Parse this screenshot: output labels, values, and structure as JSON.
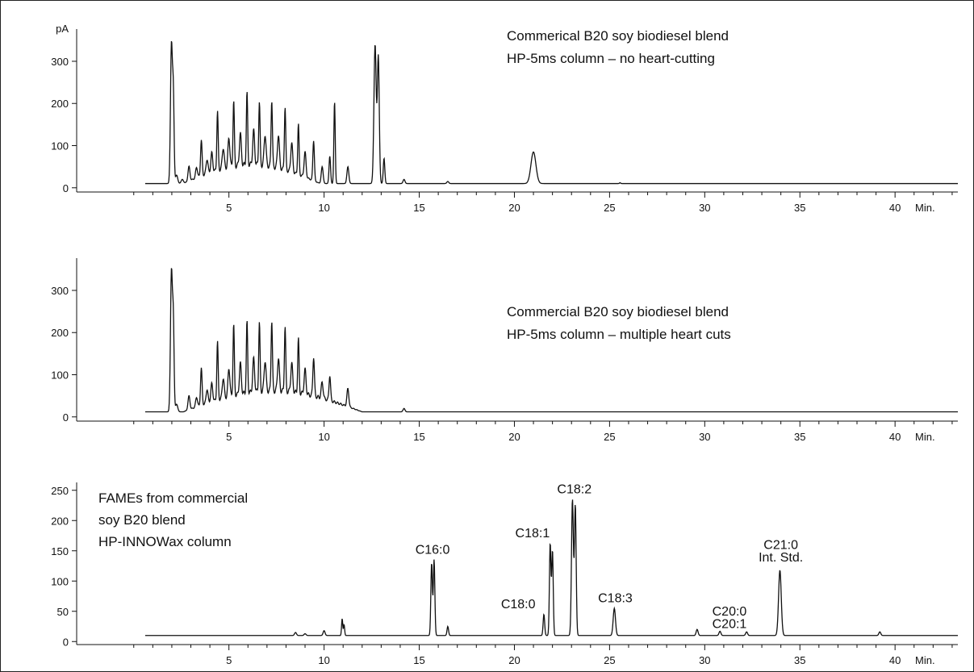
{
  "chart_data": [
    {
      "type": "line",
      "title": "",
      "xlabel": "",
      "ylabel": "",
      "y_unit_label": "pA",
      "x_unit_label": "Min.",
      "xlim": [
        -3.0,
        43.3
      ],
      "ylim": [
        -10,
        365
      ],
      "xticks": [
        5,
        10,
        15,
        20,
        25,
        30,
        35,
        40
      ],
      "yticks": [
        0,
        100,
        200,
        300
      ],
      "annotations": [
        "Commerical B20 soy biodiesel blend",
        "HP-5ms column – no heart-cutting"
      ],
      "baseline": 10,
      "peaks": [
        [
          1.98,
          340,
          0.05
        ],
        [
          2.08,
          210,
          0.04
        ],
        [
          2.25,
          30,
          0.06
        ],
        [
          2.55,
          20,
          0.06
        ],
        [
          2.9,
          45,
          0.05
        ],
        [
          3.3,
          35,
          0.05
        ],
        [
          3.55,
          95,
          0.04
        ],
        [
          3.85,
          45,
          0.05
        ],
        [
          4.1,
          55,
          0.05
        ],
        [
          4.4,
          150,
          0.035
        ],
        [
          4.7,
          60,
          0.05
        ],
        [
          5.0,
          80,
          0.05
        ],
        [
          5.25,
          165,
          0.035
        ],
        [
          5.6,
          85,
          0.05
        ],
        [
          5.95,
          180,
          0.035
        ],
        [
          6.3,
          90,
          0.05
        ],
        [
          6.6,
          160,
          0.035
        ],
        [
          6.9,
          85,
          0.05
        ],
        [
          7.25,
          170,
          0.035
        ],
        [
          7.6,
          90,
          0.05
        ],
        [
          7.95,
          160,
          0.035
        ],
        [
          8.3,
          80,
          0.05
        ],
        [
          8.65,
          130,
          0.035
        ],
        [
          9.0,
          70,
          0.05
        ],
        [
          9.45,
          105,
          0.04
        ],
        [
          9.9,
          50,
          0.05
        ],
        [
          10.3,
          75,
          0.04
        ],
        [
          10.55,
          205,
          0.035
        ],
        [
          11.25,
          50,
          0.05
        ],
        [
          12.68,
          340,
          0.06
        ],
        [
          12.85,
          310,
          0.05
        ],
        [
          13.15,
          70,
          0.04
        ],
        [
          14.2,
          20,
          0.05
        ],
        [
          16.5,
          15,
          0.05
        ],
        [
          21.0,
          85,
          0.13
        ],
        [
          25.55,
          12,
          0.03
        ]
      ],
      "bumps": [
        [
          2.6,
          9.8,
          45
        ]
      ]
    },
    {
      "type": "line",
      "title": "",
      "xlabel": "",
      "ylabel": "",
      "x_unit_label": "Min.",
      "xlim": [
        -3.0,
        43.3
      ],
      "ylim": [
        -10,
        365
      ],
      "xticks": [
        5,
        10,
        15,
        20,
        25,
        30,
        35,
        40
      ],
      "yticks": [
        0,
        100,
        200,
        300
      ],
      "annotations": [
        "Commercial B20 soy biodiesel blend",
        "HP-5ms column – multiple heart cuts"
      ],
      "baseline": 12,
      "peaks": [
        [
          1.98,
          345,
          0.05
        ],
        [
          2.08,
          215,
          0.04
        ],
        [
          2.25,
          30,
          0.06
        ],
        [
          2.9,
          45,
          0.05
        ],
        [
          3.3,
          35,
          0.05
        ],
        [
          3.55,
          100,
          0.04
        ],
        [
          3.85,
          45,
          0.05
        ],
        [
          4.1,
          55,
          0.05
        ],
        [
          4.4,
          150,
          0.035
        ],
        [
          4.7,
          60,
          0.05
        ],
        [
          5.0,
          80,
          0.05
        ],
        [
          5.25,
          180,
          0.035
        ],
        [
          5.6,
          85,
          0.05
        ],
        [
          5.95,
          180,
          0.035
        ],
        [
          6.3,
          90,
          0.05
        ],
        [
          6.6,
          175,
          0.035
        ],
        [
          6.9,
          85,
          0.05
        ],
        [
          7.25,
          180,
          0.035
        ],
        [
          7.6,
          90,
          0.05
        ],
        [
          7.95,
          165,
          0.035
        ],
        [
          8.3,
          80,
          0.05
        ],
        [
          8.65,
          140,
          0.035
        ],
        [
          9.0,
          70,
          0.05
        ],
        [
          9.45,
          105,
          0.04
        ],
        [
          9.9,
          50,
          0.05
        ],
        [
          10.3,
          72,
          0.04
        ],
        [
          11.25,
          55,
          0.05
        ],
        [
          14.2,
          20,
          0.05
        ]
      ],
      "bumps": [
        [
          2.6,
          12.0,
          50
        ]
      ]
    },
    {
      "type": "line",
      "title": "",
      "xlabel": "",
      "ylabel": "",
      "x_unit_label": "Min.",
      "xlim": [
        -3.0,
        43.3
      ],
      "ylim": [
        -5,
        255
      ],
      "xticks": [
        5,
        10,
        15,
        20,
        25,
        30,
        35,
        40
      ],
      "yticks": [
        0,
        50,
        100,
        150,
        200,
        250
      ],
      "annotations": [
        "FAMEs from commercial",
        "soy B20 blend",
        "HP-INNOWax column"
      ],
      "baseline": 10,
      "peaks": [
        [
          8.5,
          15,
          0.05
        ],
        [
          9.0,
          13,
          0.05
        ],
        [
          10.0,
          18,
          0.05
        ],
        [
          10.95,
          38,
          0.03
        ],
        [
          11.05,
          28,
          0.03
        ],
        [
          15.65,
          130,
          0.04
        ],
        [
          15.78,
          135,
          0.04
        ],
        [
          16.5,
          25,
          0.04
        ],
        [
          21.55,
          45,
          0.04
        ],
        [
          21.88,
          162,
          0.04
        ],
        [
          22.0,
          150,
          0.04
        ],
        [
          23.05,
          235,
          0.05
        ],
        [
          23.2,
          225,
          0.045
        ],
        [
          25.25,
          55,
          0.06
        ],
        [
          29.6,
          20,
          0.05
        ],
        [
          30.8,
          17,
          0.05
        ],
        [
          32.2,
          16,
          0.05
        ],
        [
          33.95,
          118,
          0.07
        ],
        [
          39.2,
          16,
          0.05
        ]
      ],
      "bumps": [],
      "peak_labels": [
        {
          "id": "c16-0",
          "text": "C16:0",
          "x": 15.7,
          "y": 140
        },
        {
          "id": "c18-0",
          "text": "C18:0",
          "x": 20.2,
          "y": 50
        },
        {
          "id": "c18-1",
          "text": "C18:1",
          "x": 20.95,
          "y": 167
        },
        {
          "id": "c18-2",
          "text": "C18:2",
          "x": 23.15,
          "y": 240
        },
        {
          "id": "c18-3",
          "text": "C18:3",
          "x": 25.3,
          "y": 60
        },
        {
          "id": "c20-0",
          "text": "C20:0",
          "x": 31.3,
          "y": 38
        },
        {
          "id": "c20-1",
          "text": "C20:1",
          "x": 31.3,
          "y": 17
        },
        {
          "id": "c21-0",
          "text": "C21:0",
          "x": 34.0,
          "y": 148
        },
        {
          "id": "int-std",
          "text": "Int. Std.",
          "x": 34.0,
          "y": 127
        }
      ]
    }
  ]
}
